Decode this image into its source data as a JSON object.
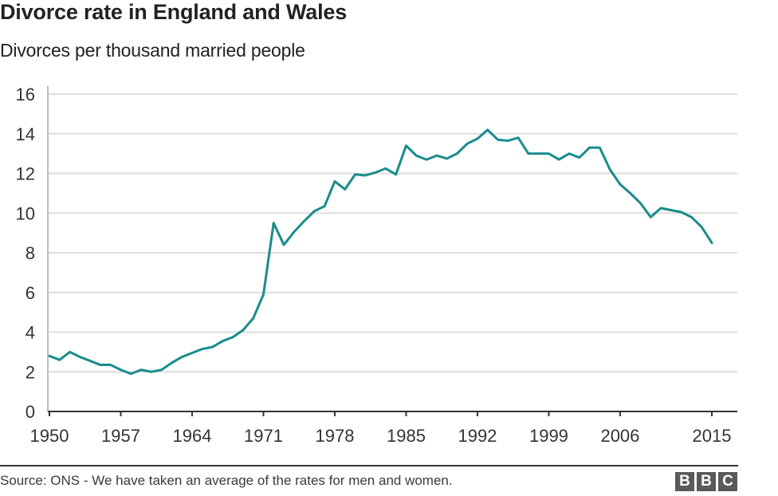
{
  "title": "Divorce rate in England and Wales",
  "subtitle": "Divorces per thousand married people",
  "source": "Source: ONS - We have taken an average of the rates for men and women.",
  "logo": [
    "B",
    "B",
    "C"
  ],
  "colors": {
    "line": "#1a8c8c",
    "grid": "#dddddd",
    "axis": "#333333",
    "text": "#222222"
  },
  "chart_data": {
    "type": "line",
    "title": "Divorce rate in England and Wales",
    "subtitle": "Divorces per thousand married people",
    "xlabel": "",
    "ylabel": "",
    "xlim": [
      1950,
      2015
    ],
    "ylim": [
      0,
      16
    ],
    "grid": true,
    "yticks": [
      0,
      2,
      4,
      6,
      8,
      10,
      12,
      14,
      16
    ],
    "xticks": [
      1950,
      1957,
      1964,
      1971,
      1978,
      1985,
      1992,
      1999,
      2006,
      2015
    ],
    "series": [
      {
        "x": [
          1950,
          1951,
          1952,
          1953,
          1954,
          1955,
          1956,
          1957,
          1958,
          1959,
          1960,
          1961,
          1962,
          1963,
          1964,
          1965,
          1966,
          1967,
          1968,
          1969,
          1970,
          1971,
          1972,
          1973,
          1974,
          1975,
          1976,
          1977,
          1978,
          1979,
          1980,
          1981,
          1982,
          1983,
          1984,
          1985,
          1986,
          1987,
          1988,
          1989,
          1990,
          1991,
          1992,
          1993,
          1994,
          1995,
          1996,
          1997,
          1998,
          1999,
          2000,
          2001,
          2002,
          2003,
          2004,
          2005,
          2006,
          2007,
          2008,
          2009,
          2010,
          2011,
          2012,
          2013,
          2014,
          2015
        ],
        "values": [
          2.8,
          2.6,
          3.0,
          2.75,
          2.55,
          2.35,
          2.35,
          2.1,
          1.9,
          2.1,
          2.0,
          2.1,
          2.45,
          2.75,
          2.95,
          3.15,
          3.25,
          3.55,
          3.75,
          4.1,
          4.7,
          5.9,
          9.5,
          8.4,
          9.05,
          9.6,
          10.1,
          10.35,
          11.6,
          11.2,
          11.95,
          11.9,
          12.05,
          12.25,
          11.95,
          13.4,
          12.9,
          12.7,
          12.9,
          12.75,
          13.0,
          13.5,
          13.75,
          14.2,
          13.7,
          13.65,
          13.8,
          13.0,
          13.0,
          13.0,
          12.7,
          13.0,
          12.8,
          13.3,
          13.3,
          12.2,
          11.45,
          11.0,
          10.5,
          9.8,
          10.25,
          10.15,
          10.05,
          9.8,
          9.3,
          8.5
        ]
      }
    ]
  }
}
